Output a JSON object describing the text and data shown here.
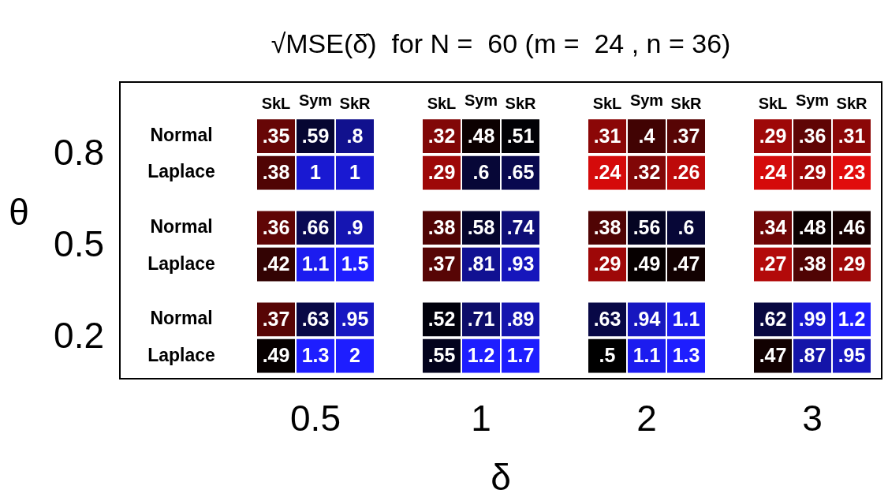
{
  "chart_data": {
    "type": "heatmap",
    "title": "√MSE(δ̂)  for N =  60 (m =  24 , n = 36)",
    "xlabel": "δ",
    "ylabel": "θ",
    "categories": [
      "SkL",
      "Sym",
      "SkR",
      "SkL",
      "Sym",
      "SkR",
      "SkL",
      "Sym",
      "SkR",
      "SkL",
      "Sym",
      "SkR"
    ],
    "y_categories": [
      "Normal",
      "Laplace",
      "Normal",
      "Laplace",
      "Normal",
      "Laplace"
    ],
    "annotations": [
      "0.5",
      "1",
      "2",
      "3",
      "0.8",
      "0.5",
      "0.2"
    ],
    "cells": [
      [
        0.35,
        0.59,
        0.8,
        0.32,
        0.48,
        0.51,
        0.31,
        0.4,
        0.37,
        0.29,
        0.36,
        0.31
      ],
      [
        0.38,
        1,
        1,
        0.29,
        0.6,
        0.65,
        0.24,
        0.32,
        0.26,
        0.24,
        0.29,
        0.23
      ],
      [
        0.36,
        0.66,
        0.9,
        0.38,
        0.58,
        0.74,
        0.38,
        0.56,
        0.6,
        0.34,
        0.48,
        0.46
      ],
      [
        0.42,
        1.1,
        1.5,
        0.37,
        0.81,
        0.93,
        0.29,
        0.49,
        0.47,
        0.27,
        0.38,
        0.29
      ],
      [
        0.37,
        0.63,
        0.95,
        0.52,
        0.71,
        0.89,
        0.63,
        0.94,
        1.1,
        0.62,
        0.99,
        1.2
      ],
      [
        0.49,
        1.3,
        2,
        0.55,
        1.2,
        1.7,
        0.5,
        1.1,
        1.3,
        0.47,
        0.87,
        0.95
      ]
    ],
    "cell_labels": [
      [
        ".35",
        ".59",
        ".8",
        ".32",
        ".48",
        ".51",
        ".31",
        ".4",
        ".37",
        ".29",
        ".36",
        ".31"
      ],
      [
        ".38",
        "1",
        "1",
        ".29",
        ".6",
        ".65",
        ".24",
        ".32",
        ".26",
        ".24",
        ".29",
        ".23"
      ],
      [
        ".36",
        ".66",
        ".9",
        ".38",
        ".58",
        ".74",
        ".38",
        ".56",
        ".6",
        ".34",
        ".48",
        ".46"
      ],
      [
        ".42",
        "1.1",
        "1.5",
        ".37",
        ".81",
        ".93",
        ".29",
        ".49",
        ".47",
        ".27",
        ".38",
        ".29"
      ],
      [
        ".37",
        ".63",
        ".95",
        ".52",
        ".71",
        ".89",
        ".63",
        ".94",
        "1.1",
        ".62",
        ".99",
        "1.2"
      ],
      [
        ".49",
        "1.3",
        "2",
        ".55",
        "1.2",
        "1.7",
        ".5",
        "1.1",
        "1.3",
        ".47",
        ".87",
        ".95"
      ]
    ]
  }
}
